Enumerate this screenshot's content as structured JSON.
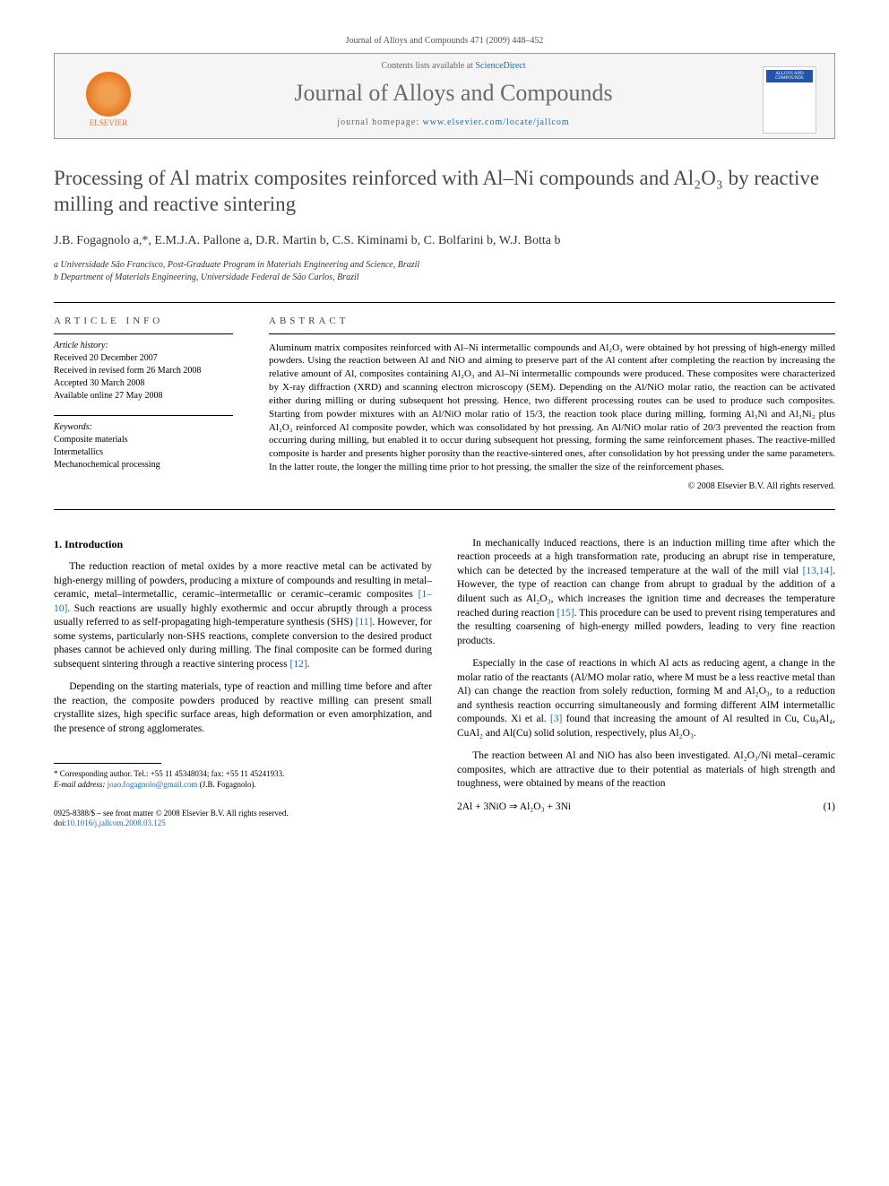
{
  "journalRef": "Journal of Alloys and Compounds 471 (2009) 448–452",
  "contentsPrefix": "Contents lists available at ",
  "contentsLink": "ScienceDirect",
  "journalName": "Journal of Alloys and Compounds",
  "homepagePrefix": "journal homepage: ",
  "homepageLink": "www.elsevier.com/locate/jallcom",
  "publisherLogoText": "ELSEVIER",
  "coverThumbText": "ALLOYS AND COMPOUNDS",
  "title": "Processing of Al matrix composites reinforced with Al–Ni compounds and Al₂O₃ by reactive milling and reactive sintering",
  "authors": "J.B. Fogagnolo a,*, E.M.J.A. Pallone a, D.R. Martin b, C.S. Kiminami b, C. Bolfarini b, W.J. Botta b",
  "affiliations": {
    "a": "a Universidade São Francisco, Post-Graduate Program in Materials Engineering and Science, Brazil",
    "b": "b Department of Materials Engineering, Universidade Federal de São Carlos, Brazil"
  },
  "infoHeading": "article info",
  "abstractHeading": "abstract",
  "history": {
    "label": "Article history:",
    "received": "Received 20 December 2007",
    "revised": "Received in revised form 26 March 2008",
    "accepted": "Accepted 30 March 2008",
    "online": "Available online 27 May 2008"
  },
  "keywords": {
    "label": "Keywords:",
    "k1": "Composite materials",
    "k2": "Intermetallics",
    "k3": "Mechanochemical processing"
  },
  "abstract": "Aluminum matrix composites reinforced with Al–Ni intermetallic compounds and Al₂O₃ were obtained by hot pressing of high-energy milled powders. Using the reaction between Al and NiO and aiming to preserve part of the Al content after completing the reaction by increasing the relative amount of Al, composites containing Al₂O₃ and Al–Ni intermetallic compounds were produced. These composites were characterized by X-ray diffraction (XRD) and scanning electron microscopy (SEM). Depending on the Al/NiO molar ratio, the reaction can be activated either during milling or during subsequent hot pressing. Hence, two different processing routes can be used to produce such composites. Starting from powder mixtures with an Al/NiO molar ratio of 15/3, the reaction took place during milling, forming Al₃Ni and Al₃Ni₂ plus Al₂O₃ reinforced Al composite powder, which was consolidated by hot pressing. An Al/NiO molar ratio of 20/3 prevented the reaction from occurring during milling, but enabled it to occur during subsequent hot pressing, forming the same reinforcement phases. The reactive-milled composite is harder and presents higher porosity than the reactive-sintered ones, after consolidation by hot pressing under the same parameters. In the latter route, the longer the milling time prior to hot pressing, the smaller the size of the reinforcement phases.",
  "copyright": "© 2008 Elsevier B.V. All rights reserved.",
  "section1": {
    "heading": "1.  Introduction",
    "p1a": "The reduction reaction of metal oxides by a more reactive metal can be activated by high-energy milling of powders, producing a mixture of compounds and resulting in metal–ceramic, metal–intermetallic, ceramic–intermetallic or ceramic–ceramic composites ",
    "p1ref1": "[1–10]",
    "p1b": ". Such reactions are usually highly exothermic and occur abruptly through a process usually referred to as self-propagating high-temperature synthesis (SHS) ",
    "p1ref2": "[11]",
    "p1c": ". However, for some systems, particularly non-SHS reactions, complete conversion to the desired product phases cannot be achieved only during milling. The final composite can be formed during subsequent sintering through a reactive sintering process ",
    "p1ref3": "[12]",
    "p1d": ".",
    "p2": "Depending on the starting materials, type of reaction and milling time before and after the reaction, the composite powders produced by reactive milling can present small crystallite sizes, high specific surface areas, high deformation or even amorphization, and the presence of strong agglomerates.",
    "p3a": "In mechanically induced reactions, there is an induction milling time after which the reaction proceeds at a high transformation rate, producing an abrupt rise in temperature, which can be detected by the increased temperature at the wall of the mill vial ",
    "p3ref1": "[13,14]",
    "p3b": ". However, the type of reaction can change from abrupt to gradual by the addition of a diluent such as Al₂O₃, which increases the ignition time and decreases the temperature reached during reaction ",
    "p3ref2": "[15]",
    "p3c": ". This procedure can be used to prevent rising temperatures and the resulting coarsening of high-energy milled powders, leading to very fine reaction products.",
    "p4a": "Especially in the case of reactions in which Al acts as reducing agent, a change in the molar ratio of the reactants (Al/MO molar ratio, where M must be a less reactive metal than Al) can change the reaction from solely reduction, forming M and Al₂O₃, to a reduction and synthesis reaction occurring simultaneously and forming different AlM intermetallic compounds. Xi et al. ",
    "p4ref1": "[3]",
    "p4b": " found that increasing the amount of Al resulted in Cu, Cu₉Al₄, CuAl₂ and Al(Cu) solid solution, respectively, plus Al₂O₃.",
    "p5": "The reaction between Al and NiO has also been investigated. Al₂O₃/Ni metal–ceramic composites, which are attractive due to their potential as materials of high strength and toughness, were obtained by means of the reaction",
    "eq": "2Al + 3NiO ⇒ Al₂O₃ + 3Ni",
    "eqnum": "(1)"
  },
  "footnote": {
    "corr": "* Corresponding author. Tel.: +55 11 45348034; fax: +55 11 45241933.",
    "emailLabel": "E-mail address: ",
    "email": "joao.fogagnolo@gmail.com",
    "emailSuffix": " (J.B. Fogagnolo)."
  },
  "footer": {
    "line1": "0925-8388/$ – see front matter © 2008 Elsevier B.V. All rights reserved.",
    "doiLabel": "doi:",
    "doi": "10.1016/j.jallcom.2008.03.125"
  }
}
